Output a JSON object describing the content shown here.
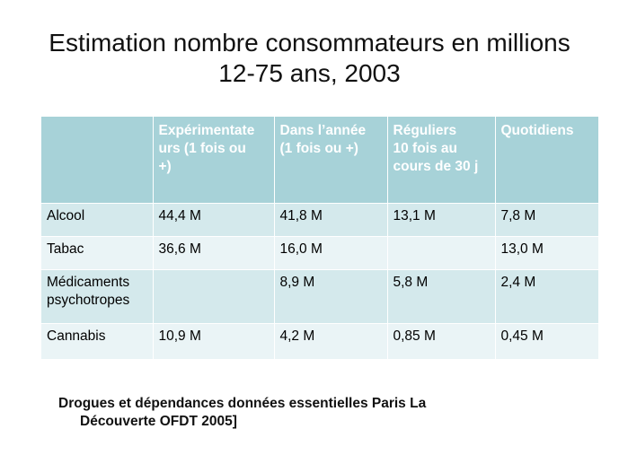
{
  "title": {
    "line1": "Estimation nombre consommateurs en millions",
    "line2": "12-75 ans, 2003"
  },
  "table": {
    "headers": [
      [
        ""
      ],
      [
        "Expérimentate",
        "urs (1 fois ou",
        "+)"
      ],
      [
        "Dans l’année",
        "(1 fois ou +)"
      ],
      [
        "Réguliers",
        "10 fois au",
        "cours de 30 j"
      ],
      [
        "Quotidiens"
      ]
    ],
    "rows": [
      [
        [
          "Alcool"
        ],
        [
          "44,4 M"
        ],
        [
          "41,8 M"
        ],
        [
          "13,1 M"
        ],
        [
          "7,8 M"
        ]
      ],
      [
        [
          "Tabac"
        ],
        [
          "36,6 M"
        ],
        [
          "16,0 M"
        ],
        [
          ""
        ],
        [
          "13,0 M"
        ]
      ],
      [
        [
          "Médicaments",
          "psychotropes"
        ],
        [
          ""
        ],
        [
          "8,9 M"
        ],
        [
          "5,8 M"
        ],
        [
          "2,4 M"
        ]
      ],
      [
        [
          "Cannabis"
        ],
        [
          "10,9 M"
        ],
        [
          "4,2 M"
        ],
        [
          "0,85 M"
        ],
        [
          "0,45 M"
        ]
      ]
    ]
  },
  "source": {
    "line1": "Drogues et dépendances données essentielles Paris La",
    "line2": "Découverte OFDT 2005]"
  },
  "colors": {
    "header_bg": "#a7d2d8",
    "row_odd_bg": "#d4e9ec",
    "row_even_bg": "#eaf4f6"
  }
}
